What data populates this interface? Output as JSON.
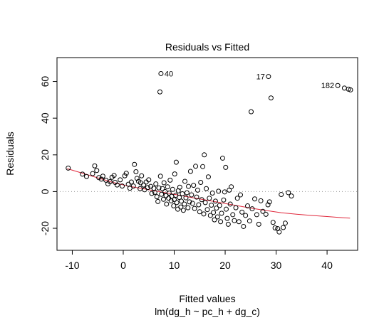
{
  "chart_data": {
    "type": "scatter",
    "title": "Residuals vs Fitted",
    "xlabel": "Fitted values",
    "xlabel_sub": "lm(dg_h ~ pc_h + dg_c)",
    "ylabel": "Residuals",
    "xlim": [
      -13,
      46
    ],
    "ylim": [
      -32,
      73
    ],
    "x_ticks": [
      -10,
      0,
      10,
      20,
      30,
      40
    ],
    "y_ticks": [
      -20,
      0,
      20,
      40,
      60
    ],
    "reference_line_y": 0,
    "smooth_color": "#e0283c",
    "reference_color": "#9a9a9a",
    "smoother": [
      [
        -11,
        12.5
      ],
      [
        -8,
        10.0
      ],
      [
        -5,
        7.5
      ],
      [
        -2,
        5.0
      ],
      [
        1,
        3.0
      ],
      [
        4,
        1.5
      ],
      [
        7,
        0.0
      ],
      [
        10,
        -1.5
      ],
      [
        13,
        -3.0
      ],
      [
        16,
        -4.5
      ],
      [
        19,
        -6.0
      ],
      [
        22,
        -7.5
      ],
      [
        25,
        -9.0
      ],
      [
        28,
        -10.3
      ],
      [
        31,
        -11.5
      ],
      [
        34,
        -12.3
      ],
      [
        37,
        -13.0
      ],
      [
        40,
        -13.6
      ],
      [
        43,
        -14.2
      ],
      [
        44.5,
        -14.5
      ]
    ],
    "labeled_points": [
      {
        "label": "40",
        "x": 7.4,
        "y": 64.3
      },
      {
        "label": "17",
        "x": 28.5,
        "y": 62.7
      },
      {
        "label": "182",
        "x": 42.1,
        "y": 57.8
      }
    ],
    "points": [
      [
        -10.8,
        12.8
      ],
      [
        -8.0,
        9.5
      ],
      [
        -7.2,
        8.2
      ],
      [
        -6.0,
        9.8
      ],
      [
        -5.6,
        14.0
      ],
      [
        -5.2,
        11.5
      ],
      [
        -4.8,
        7.6
      ],
      [
        -4.3,
        6.8
      ],
      [
        -4.0,
        8.4
      ],
      [
        -3.4,
        6.2
      ],
      [
        -3.0,
        4.2
      ],
      [
        -2.6,
        5.4
      ],
      [
        -2.2,
        7.8
      ],
      [
        -1.8,
        8.8
      ],
      [
        -1.6,
        5.0
      ],
      [
        -1.2,
        3.6
      ],
      [
        -0.6,
        6.4
      ],
      [
        -0.2,
        3.0
      ],
      [
        0.3,
        8.6
      ],
      [
        0.6,
        10.0
      ],
      [
        1.0,
        4.0
      ],
      [
        1.3,
        1.8
      ],
      [
        1.6,
        5.2
      ],
      [
        2.0,
        3.0
      ],
      [
        2.2,
        14.8
      ],
      [
        2.5,
        10.8
      ],
      [
        2.7,
        7.2
      ],
      [
        3.0,
        5.6
      ],
      [
        3.3,
        1.6
      ],
      [
        3.4,
        4.8
      ],
      [
        3.6,
        8.6
      ],
      [
        4.0,
        3.6
      ],
      [
        4.2,
        1.0
      ],
      [
        4.5,
        5.2
      ],
      [
        4.8,
        2.2
      ],
      [
        5.0,
        6.4
      ],
      [
        5.4,
        2.8
      ],
      [
        5.6,
        -1.0
      ],
      [
        6.0,
        1.8
      ],
      [
        6.2,
        -0.4
      ],
      [
        6.4,
        4.2
      ],
      [
        6.6,
        -2.8
      ],
      [
        6.8,
        -5.4
      ],
      [
        7.0,
        2.0
      ],
      [
        7.2,
        54.3
      ],
      [
        7.3,
        8.4
      ],
      [
        7.5,
        -1.5
      ],
      [
        7.7,
        1.6
      ],
      [
        7.9,
        -4.2
      ],
      [
        8.0,
        4.8
      ],
      [
        8.2,
        0.0
      ],
      [
        8.4,
        -2.2
      ],
      [
        8.5,
        -6.8
      ],
      [
        8.7,
        2.6
      ],
      [
        8.9,
        -3.6
      ],
      [
        9.0,
        -0.8
      ],
      [
        9.2,
        6.2
      ],
      [
        9.4,
        -5.0
      ],
      [
        9.5,
        -2.6
      ],
      [
        9.7,
        1.2
      ],
      [
        9.9,
        -7.8
      ],
      [
        10.0,
        -4.4
      ],
      [
        10.1,
        9.6
      ],
      [
        10.3,
        -2.0
      ],
      [
        10.4,
        16.0
      ],
      [
        10.5,
        -6.0
      ],
      [
        10.7,
        -9.6
      ],
      [
        10.8,
        0.4
      ],
      [
        11.0,
        -3.2
      ],
      [
        11.1,
        2.4
      ],
      [
        11.3,
        -8.4
      ],
      [
        11.4,
        -5.2
      ],
      [
        11.6,
        -1.2
      ],
      [
        11.8,
        -10.2
      ],
      [
        12.0,
        -6.8
      ],
      [
        12.1,
        5.6
      ],
      [
        12.3,
        -3.4
      ],
      [
        12.5,
        -0.6
      ],
      [
        12.7,
        -8.8
      ],
      [
        12.8,
        2.8
      ],
      [
        13.0,
        -5.6
      ],
      [
        13.2,
        11.0
      ],
      [
        13.4,
        -1.8
      ],
      [
        13.6,
        -6.4
      ],
      [
        13.8,
        3.4
      ],
      [
        14.0,
        -9.2
      ],
      [
        14.2,
        13.8
      ],
      [
        14.4,
        -3.0
      ],
      [
        14.6,
        0.8
      ],
      [
        14.8,
        -7.2
      ],
      [
        15.0,
        -11.0
      ],
      [
        15.2,
        5.0
      ],
      [
        15.4,
        -4.4
      ],
      [
        15.6,
        13.6
      ],
      [
        15.8,
        -12.2
      ],
      [
        15.9,
        20.0
      ],
      [
        16.1,
        -6.0
      ],
      [
        16.3,
        1.6
      ],
      [
        16.5,
        -9.8
      ],
      [
        16.7,
        8.0
      ],
      [
        16.9,
        -3.6
      ],
      [
        17.1,
        -13.0
      ],
      [
        17.3,
        -7.4
      ],
      [
        17.5,
        -0.8
      ],
      [
        17.7,
        -11.4
      ],
      [
        17.9,
        -15.4
      ],
      [
        18.1,
        -5.2
      ],
      [
        18.3,
        -9.0
      ],
      [
        18.5,
        -13.8
      ],
      [
        18.7,
        0.2
      ],
      [
        18.9,
        -7.6
      ],
      [
        19.1,
        -16.4
      ],
      [
        19.3,
        -11.8
      ],
      [
        19.5,
        18.2
      ],
      [
        19.7,
        -4.6
      ],
      [
        19.9,
        -0.2
      ],
      [
        20.1,
        13.2
      ],
      [
        20.2,
        -9.6
      ],
      [
        20.4,
        -14.6
      ],
      [
        20.6,
        -17.8
      ],
      [
        20.8,
        0.8
      ],
      [
        21.0,
        -6.8
      ],
      [
        21.2,
        2.6
      ],
      [
        21.5,
        -12.6
      ],
      [
        21.8,
        -15.8
      ],
      [
        22.1,
        -8.8
      ],
      [
        22.4,
        -3.6
      ],
      [
        22.7,
        -16.4
      ],
      [
        23.0,
        -1.8
      ],
      [
        23.3,
        -11.2
      ],
      [
        23.6,
        -19.0
      ],
      [
        24.0,
        -13.0
      ],
      [
        24.4,
        -7.8
      ],
      [
        24.8,
        -16.0
      ],
      [
        25.1,
        43.5
      ],
      [
        25.3,
        -9.4
      ],
      [
        25.8,
        -4.0
      ],
      [
        26.2,
        -12.6
      ],
      [
        26.6,
        -17.8
      ],
      [
        27.0,
        -5.0
      ],
      [
        27.4,
        -10.8
      ],
      [
        28.0,
        -12.4
      ],
      [
        28.4,
        -7.2
      ],
      [
        28.7,
        -5.6
      ],
      [
        29.0,
        51.0
      ],
      [
        29.4,
        -16.8
      ],
      [
        29.8,
        -19.8
      ],
      [
        30.3,
        -20.2
      ],
      [
        30.6,
        -22.0
      ],
      [
        31.0,
        -1.6
      ],
      [
        31.4,
        -19.6
      ],
      [
        31.8,
        -17.2
      ],
      [
        32.4,
        -0.6
      ],
      [
        33.0,
        -2.4
      ],
      [
        43.4,
        56.4
      ],
      [
        44.2,
        55.8
      ],
      [
        44.6,
        55.4
      ]
    ]
  }
}
